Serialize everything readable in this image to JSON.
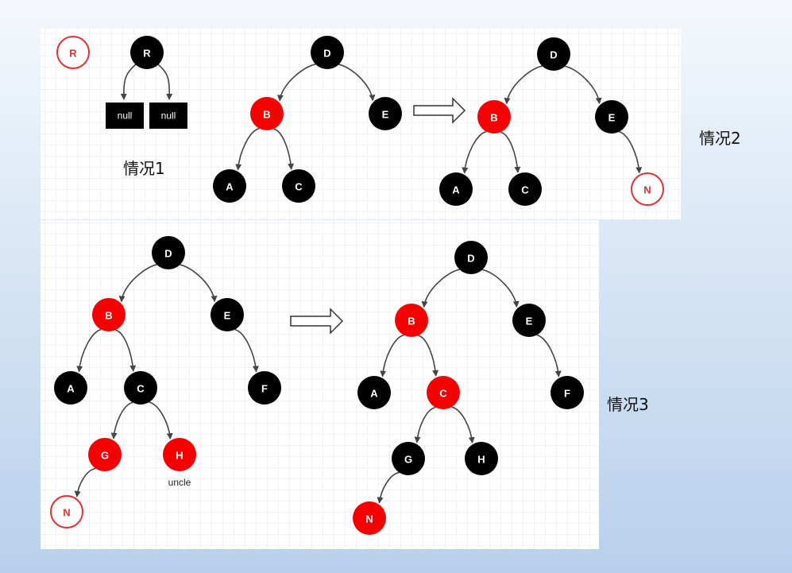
{
  "captions": {
    "case1": "情况1",
    "case2": "情况2",
    "case3": "情况3",
    "uncle": "uncle"
  },
  "null_labels": [
    "null",
    "null"
  ],
  "colors": {
    "black": "#000000",
    "red": "#f50000",
    "outline_red": "#e53030"
  },
  "trees": {
    "case1": {
      "nodes": [
        {
          "id": "R_legend",
          "label": "R",
          "color": "outline"
        },
        {
          "id": "R",
          "label": "R",
          "color": "black"
        }
      ]
    },
    "case2_before": {
      "nodes": [
        {
          "id": "D",
          "label": "D",
          "color": "black"
        },
        {
          "id": "B",
          "label": "B",
          "color": "red"
        },
        {
          "id": "E",
          "label": "E",
          "color": "black"
        },
        {
          "id": "A",
          "label": "A",
          "color": "black"
        },
        {
          "id": "C",
          "label": "C",
          "color": "black"
        }
      ],
      "edges": [
        [
          "D",
          "B"
        ],
        [
          "D",
          "E"
        ],
        [
          "B",
          "A"
        ],
        [
          "B",
          "C"
        ]
      ]
    },
    "case2_after": {
      "nodes": [
        {
          "id": "D",
          "label": "D",
          "color": "black"
        },
        {
          "id": "B",
          "label": "B",
          "color": "red"
        },
        {
          "id": "E",
          "label": "E",
          "color": "black"
        },
        {
          "id": "A",
          "label": "A",
          "color": "black"
        },
        {
          "id": "C",
          "label": "C",
          "color": "black"
        },
        {
          "id": "N",
          "label": "N",
          "color": "outline"
        }
      ],
      "edges": [
        [
          "D",
          "B"
        ],
        [
          "D",
          "E"
        ],
        [
          "B",
          "A"
        ],
        [
          "B",
          "C"
        ],
        [
          "E",
          "N"
        ]
      ]
    },
    "case3_before": {
      "nodes": [
        {
          "id": "D",
          "label": "D",
          "color": "black"
        },
        {
          "id": "B",
          "label": "B",
          "color": "red"
        },
        {
          "id": "E",
          "label": "E",
          "color": "black"
        },
        {
          "id": "A",
          "label": "A",
          "color": "black"
        },
        {
          "id": "C",
          "label": "C",
          "color": "black"
        },
        {
          "id": "F",
          "label": "F",
          "color": "black"
        },
        {
          "id": "G",
          "label": "G",
          "color": "red"
        },
        {
          "id": "H",
          "label": "H",
          "color": "red"
        },
        {
          "id": "N",
          "label": "N",
          "color": "outline"
        }
      ],
      "edges": [
        [
          "D",
          "B"
        ],
        [
          "D",
          "E"
        ],
        [
          "B",
          "A"
        ],
        [
          "B",
          "C"
        ],
        [
          "E",
          "F"
        ],
        [
          "C",
          "G"
        ],
        [
          "C",
          "H"
        ],
        [
          "G",
          "N"
        ]
      ]
    },
    "case3_after": {
      "nodes": [
        {
          "id": "D",
          "label": "D",
          "color": "black"
        },
        {
          "id": "B",
          "label": "B",
          "color": "red"
        },
        {
          "id": "E",
          "label": "E",
          "color": "black"
        },
        {
          "id": "A",
          "label": "A",
          "color": "black"
        },
        {
          "id": "C",
          "label": "C",
          "color": "red"
        },
        {
          "id": "F",
          "label": "F",
          "color": "black"
        },
        {
          "id": "G",
          "label": "G",
          "color": "black"
        },
        {
          "id": "H",
          "label": "H",
          "color": "black"
        },
        {
          "id": "N",
          "label": "N",
          "color": "red"
        }
      ],
      "edges": [
        [
          "D",
          "B"
        ],
        [
          "D",
          "E"
        ],
        [
          "B",
          "A"
        ],
        [
          "B",
          "C"
        ],
        [
          "E",
          "F"
        ],
        [
          "C",
          "G"
        ],
        [
          "C",
          "H"
        ],
        [
          "G",
          "N"
        ]
      ]
    }
  }
}
